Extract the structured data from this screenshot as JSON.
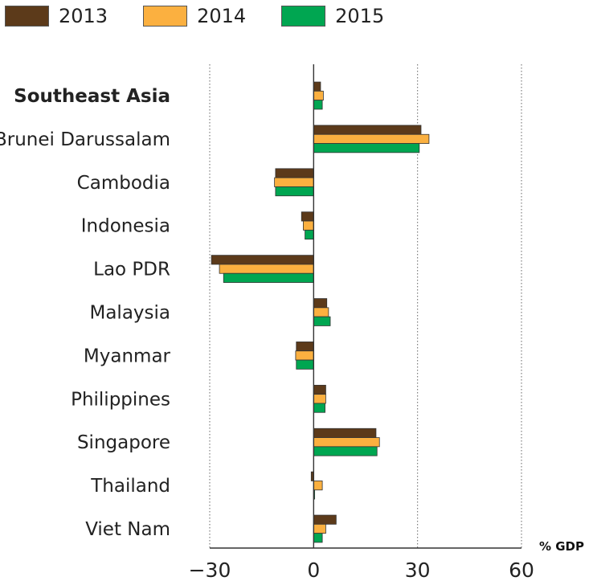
{
  "chart_data": {
    "type": "bar",
    "orientation": "horizontal",
    "categories": [
      "Southeast Asia",
      "Brunei Darussalam",
      "Cambodia",
      "Indonesia",
      "Lao PDR",
      "Malaysia",
      "Myanmar",
      "Philippines",
      "Singapore",
      "Thailand",
      "Viet Nam"
    ],
    "bold_categories": [
      "Southeast Asia"
    ],
    "series": [
      {
        "name": "2013",
        "color": "#5c3a1a",
        "values": [
          2.0,
          31.0,
          -11.0,
          -3.5,
          -29.5,
          3.8,
          -5.0,
          3.5,
          18.0,
          -0.7,
          6.5
        ]
      },
      {
        "name": "2014",
        "color": "#fbb040",
        "values": [
          2.8,
          33.3,
          -11.3,
          -3.0,
          -27.2,
          4.3,
          -5.2,
          3.5,
          19.0,
          2.5,
          3.5
        ]
      },
      {
        "name": "2015",
        "color": "#00a651",
        "values": [
          2.5,
          30.5,
          -11.0,
          -2.5,
          -26.0,
          4.8,
          -5.0,
          3.3,
          18.3,
          0.3,
          2.5
        ]
      }
    ],
    "xlabel": "% GDP",
    "xlim": [
      -30,
      60
    ],
    "xticks": [
      "−30",
      "0",
      "30",
      "60"
    ],
    "xtick_values": [
      -30,
      0,
      30,
      60
    ],
    "grid": true,
    "legend_position": "top-left"
  }
}
